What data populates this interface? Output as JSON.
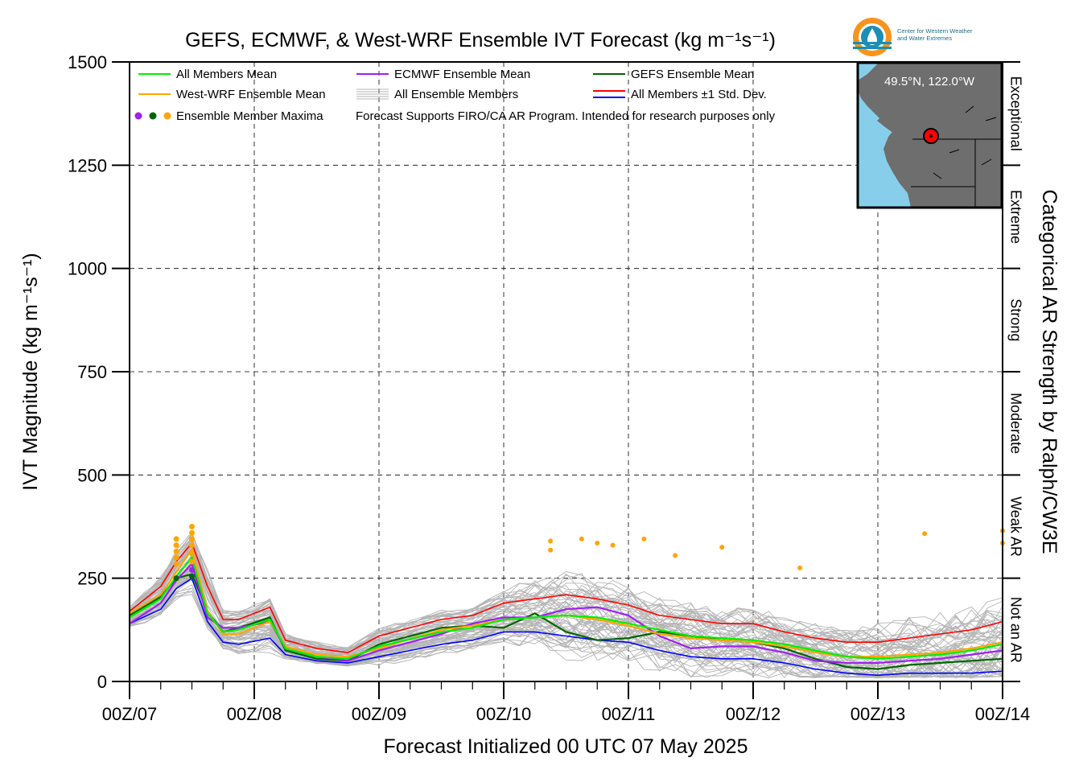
{
  "chart_data": {
    "type": "line",
    "title": "GEFS, ECMWF, & West-WRF Ensemble IVT Forecast (kg m⁻¹s⁻¹)",
    "xlabel": "Forecast Initialized 00 UTC 07 May 2025",
    "ylabel": "IVT Magnitude (kg m⁻¹s⁻¹)",
    "right_label": "Categorical AR Strength by Ralph/CW3E",
    "x_range_days": [
      0,
      7
    ],
    "x_tick_labels": [
      "00Z/07",
      "00Z/08",
      "00Z/09",
      "00Z/10",
      "00Z/11",
      "00Z/12",
      "00Z/13",
      "00Z/14"
    ],
    "ylim": [
      0,
      1500
    ],
    "y_ticks": [
      0,
      250,
      500,
      750,
      1000,
      1250,
      1500
    ],
    "grid": true,
    "categories_ar": [
      {
        "label": "Not an AR",
        "from": 0,
        "to": 250
      },
      {
        "label": "Weak AR",
        "from": 250,
        "to": 500
      },
      {
        "label": "Moderate",
        "from": 500,
        "to": 750
      },
      {
        "label": "Strong",
        "from": 750,
        "to": 1000
      },
      {
        "label": "Extreme",
        "from": 1000,
        "to": 1250
      },
      {
        "label": "Exceptional",
        "from": 1250,
        "to": 1500
      }
    ],
    "legend": {
      "placement": "top-left",
      "all_members_mean": "All Members Mean",
      "westwrf_mean": "West-WRF Ensemble Mean",
      "ensemble_maxima": "Ensemble Member Maxima",
      "ecmwf_mean": "ECMWF Ensemble Mean",
      "all_members": "All Ensemble Members",
      "note": "Forecast Supports FIRO/CA AR Program. Intended for research purposes only",
      "gefs_mean": "GEFS Ensemble Mean",
      "std_dev": "All Members ±1 Std. Dev."
    },
    "colors": {
      "all_members_mean": "#00ee00",
      "westwrf": "#ffa500",
      "ecmwf": "#a020f0",
      "gefs": "#006400",
      "std_upper": "#ff0000",
      "std_lower": "#0000ff",
      "members": "#b4b4b4"
    },
    "series": [
      {
        "name": "All Members Mean",
        "x": [
          0,
          0.25,
          0.375,
          0.5,
          0.625,
          0.75,
          0.875,
          1.125,
          1.25,
          1.5,
          1.75,
          2,
          2.5,
          2.75,
          3,
          3.25,
          3.5,
          3.75,
          4,
          4.25,
          4.5,
          4.75,
          5,
          5.25,
          5.5,
          5.75,
          6,
          6.25,
          6.5,
          6.75,
          7
        ],
        "y": [
          155,
          200,
          255,
          300,
          165,
          120,
          125,
          150,
          80,
          60,
          55,
          85,
          120,
          130,
          150,
          155,
          160,
          155,
          140,
          125,
          110,
          105,
          100,
          90,
          75,
          60,
          55,
          60,
          65,
          75,
          90
        ]
      },
      {
        "name": "West-WRF Ensemble Mean",
        "x": [
          0,
          0.25,
          0.375,
          0.5,
          0.625,
          0.75,
          0.875,
          1.125,
          1.25,
          1.5,
          1.75,
          2,
          2.5,
          2.75,
          3,
          3.25,
          3.5,
          3.75,
          4,
          4.25,
          4.5,
          4.75,
          5,
          5.25,
          5.5,
          5.75,
          6,
          6.25,
          6.5,
          6.75,
          7
        ],
        "y": [
          165,
          210,
          265,
          320,
          170,
          115,
          115,
          145,
          85,
          65,
          60,
          80,
          125,
          135,
          150,
          155,
          160,
          150,
          135,
          115,
          105,
          100,
          95,
          85,
          70,
          60,
          60,
          65,
          70,
          80,
          95
        ]
      },
      {
        "name": "ECMWF Ensemble Mean",
        "x": [
          0,
          0.25,
          0.375,
          0.5,
          0.625,
          0.75,
          0.875,
          1.125,
          1.25,
          1.5,
          1.75,
          2,
          2.5,
          2.75,
          3,
          3.25,
          3.5,
          3.75,
          4,
          4.25,
          4.5,
          4.75,
          5,
          5.25,
          5.5,
          5.75,
          6,
          6.25,
          6.5,
          6.75,
          7
        ],
        "y": [
          140,
          190,
          245,
          285,
          155,
          130,
          130,
          145,
          80,
          60,
          50,
          75,
          115,
          140,
          155,
          155,
          175,
          180,
          160,
          110,
          80,
          85,
          85,
          70,
          50,
          45,
          45,
          50,
          55,
          65,
          75
        ]
      },
      {
        "name": "GEFS Ensemble Mean",
        "x": [
          0,
          0.25,
          0.375,
          0.5,
          0.625,
          0.75,
          0.875,
          1.125,
          1.25,
          1.5,
          1.75,
          2,
          2.5,
          2.75,
          3,
          3.25,
          3.5,
          3.75,
          4,
          4.25,
          4.5,
          4.75,
          5,
          5.25,
          5.5,
          5.75,
          6,
          6.25,
          6.5,
          6.75,
          7
        ],
        "y": [
          160,
          205,
          250,
          260,
          170,
          120,
          130,
          155,
          75,
          55,
          50,
          90,
          130,
          135,
          130,
          165,
          120,
          100,
          105,
          120,
          110,
          100,
          95,
          80,
          55,
          35,
          30,
          40,
          45,
          50,
          55
        ]
      },
      {
        "name": "All Members +1 Std. Dev.",
        "x": [
          0,
          0.25,
          0.375,
          0.5,
          0.625,
          0.75,
          0.875,
          1.125,
          1.25,
          1.5,
          1.75,
          2,
          2.5,
          2.75,
          3,
          3.25,
          3.5,
          3.75,
          4,
          4.25,
          4.5,
          4.75,
          5,
          5.25,
          5.5,
          5.75,
          6,
          6.25,
          6.5,
          6.75,
          7
        ],
        "y": [
          170,
          230,
          290,
          335,
          230,
          150,
          150,
          180,
          100,
          80,
          70,
          110,
          150,
          160,
          190,
          200,
          210,
          200,
          185,
          160,
          150,
          140,
          140,
          120,
          105,
          95,
          95,
          105,
          115,
          125,
          145
        ]
      },
      {
        "name": "All Members -1 Std. Dev.",
        "x": [
          0,
          0.25,
          0.375,
          0.5,
          0.625,
          0.75,
          0.875,
          1.125,
          1.25,
          1.5,
          1.75,
          2,
          2.5,
          2.75,
          3,
          3.25,
          3.5,
          3.75,
          4,
          4.25,
          4.5,
          4.75,
          5,
          5.25,
          5.5,
          5.75,
          6,
          6.25,
          6.5,
          6.75,
          7
        ],
        "y": [
          140,
          175,
          225,
          250,
          145,
          95,
          90,
          105,
          65,
          50,
          45,
          60,
          90,
          100,
          120,
          120,
          110,
          100,
          95,
          75,
          60,
          55,
          55,
          45,
          30,
          20,
          15,
          20,
          20,
          20,
          25
        ]
      }
    ],
    "member_maxima": [
      {
        "model": "WestWRF",
        "x": 0.375,
        "y": 345
      },
      {
        "model": "WestWRF",
        "x": 0.375,
        "y": 330
      },
      {
        "model": "WestWRF",
        "x": 0.375,
        "y": 315
      },
      {
        "model": "WestWRF",
        "x": 0.375,
        "y": 300
      },
      {
        "model": "WestWRF",
        "x": 0.375,
        "y": 285
      },
      {
        "model": "WestWRF",
        "x": 0.5,
        "y": 375
      },
      {
        "model": "WestWRF",
        "x": 0.5,
        "y": 360
      },
      {
        "model": "WestWRF",
        "x": 0.5,
        "y": 345
      },
      {
        "model": "WestWRF",
        "x": 0.5,
        "y": 330
      },
      {
        "model": "WestWRF",
        "x": 0.5,
        "y": 310
      },
      {
        "model": "WestWRF",
        "x": 0.5,
        "y": 290
      },
      {
        "model": "WestWRF",
        "x": 3.375,
        "y": 340
      },
      {
        "model": "WestWRF",
        "x": 3.375,
        "y": 318
      },
      {
        "model": "WestWRF",
        "x": 3.625,
        "y": 345
      },
      {
        "model": "WestWRF",
        "x": 3.75,
        "y": 335
      },
      {
        "model": "WestWRF",
        "x": 3.875,
        "y": 330
      },
      {
        "model": "WestWRF",
        "x": 4.125,
        "y": 345
      },
      {
        "model": "WestWRF",
        "x": 4.375,
        "y": 305
      },
      {
        "model": "WestWRF",
        "x": 4.75,
        "y": 325
      },
      {
        "model": "WestWRF",
        "x": 5.375,
        "y": 275
      },
      {
        "model": "WestWRF",
        "x": 6.375,
        "y": 358
      },
      {
        "model": "WestWRF",
        "x": 7.0,
        "y": 365
      },
      {
        "model": "WestWRF",
        "x": 7.0,
        "y": 335
      },
      {
        "model": "GEFS",
        "x": 0.375,
        "y": 250
      },
      {
        "model": "GEFS",
        "x": 0.5,
        "y": 255
      },
      {
        "model": "ECMWF",
        "x": 0.5,
        "y": 270
      }
    ],
    "num_members": 60
  },
  "logo": {
    "name": "Center for Western Weather and Water Extremes",
    "line1": "Center for Western Weather",
    "line2": "and Water Extremes"
  },
  "inset_map": {
    "coords_label": "49.5°N, 122.0°W",
    "colors": {
      "ocean": "#87ceeb",
      "land": "#6e6e6e",
      "marker": "#ff0000"
    }
  }
}
